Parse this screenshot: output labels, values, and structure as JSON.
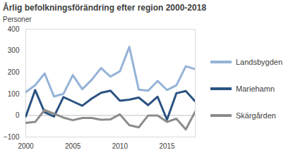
{
  "chart_data": {
    "type": "line",
    "title": "Årlig befolkningsförändring efter region 2000-2018",
    "y_label": "Personer",
    "x": [
      2000,
      2001,
      2002,
      2003,
      2004,
      2005,
      2006,
      2007,
      2008,
      2009,
      2010,
      2011,
      2012,
      2013,
      2014,
      2015,
      2016,
      2017,
      2018
    ],
    "series": [
      {
        "name": "Landsbygden",
        "color": "#95b3d7",
        "values": [
          108,
          140,
          195,
          88,
          100,
          187,
          122,
          165,
          220,
          180,
          205,
          318,
          120,
          115,
          160,
          118,
          140,
          228,
          215
        ]
      },
      {
        "name": "Mariehamn",
        "color": "#2b5282",
        "values": [
          -5,
          118,
          15,
          -5,
          85,
          65,
          45,
          78,
          105,
          115,
          68,
          73,
          83,
          48,
          87,
          -20,
          103,
          113,
          65
        ]
      },
      {
        "name": "Skärgården",
        "color": "#8c8c8c",
        "values": [
          -35,
          -30,
          25,
          8,
          -10,
          -22,
          -12,
          -12,
          -20,
          -18,
          5,
          -45,
          -55,
          0,
          0,
          -30,
          -15,
          -65,
          18
        ]
      }
    ],
    "xlim": [
      2000,
      2018
    ],
    "xticks": [
      2000,
      2005,
      2010,
      2015
    ],
    "ylim": [
      -100,
      400
    ],
    "yticks": [
      -100,
      0,
      100,
      200,
      300,
      400
    ],
    "grid": false,
    "legend": "right"
  }
}
